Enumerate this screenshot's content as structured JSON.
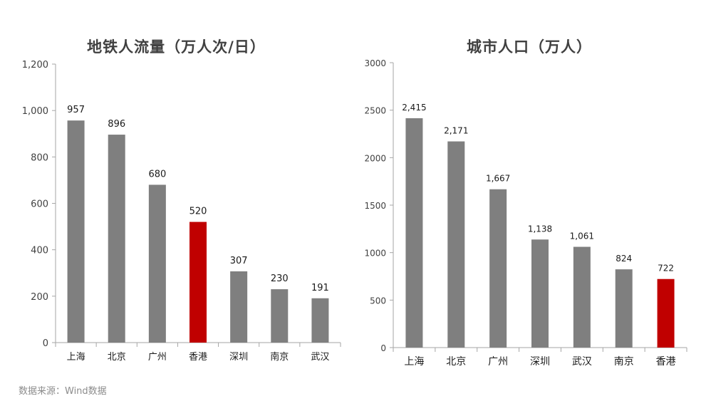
{
  "source": "数据来源：Wind数据",
  "chart_data": [
    {
      "type": "bar",
      "title": "地铁人流量（万人次/日）",
      "xlabel": "",
      "ylabel": "",
      "categories": [
        "上海",
        "北京",
        "广州",
        "香港",
        "深圳",
        "南京",
        "武汉"
      ],
      "values": [
        957,
        896,
        680,
        520,
        307,
        230,
        191
      ],
      "value_labels": [
        "957",
        "896",
        "680",
        "520",
        "307",
        "230",
        "191"
      ],
      "ylim": [
        0,
        1200
      ],
      "yticks": [
        0,
        200,
        400,
        600,
        800,
        1000,
        1200
      ],
      "ytick_labels": [
        "0",
        "200",
        "400",
        "600",
        "800",
        "1,000",
        "1,200"
      ],
      "highlight": "香港",
      "bar_color": "#7f7f7f",
      "highlight_color": "#c00000",
      "grid": false,
      "legend": "none"
    },
    {
      "type": "bar",
      "title": "城市人口（万人）",
      "xlabel": "",
      "ylabel": "",
      "categories": [
        "上海",
        "北京",
        "广州",
        "深圳",
        "武汉",
        "南京",
        "香港"
      ],
      "values": [
        2415,
        2171,
        1667,
        1138,
        1061,
        824,
        722
      ],
      "value_labels": [
        "2,415",
        "2,171",
        "1,667",
        "1,138",
        "1,061",
        "824",
        "722"
      ],
      "ylim": [
        0,
        3000
      ],
      "yticks": [
        0,
        500,
        1000,
        1500,
        2000,
        2500,
        3000
      ],
      "ytick_labels": [
        "0",
        "500",
        "1000",
        "1500",
        "2000",
        "2500",
        "3000"
      ],
      "highlight": "香港",
      "bar_color": "#7f7f7f",
      "highlight_color": "#c00000",
      "grid": false,
      "legend": "none"
    }
  ]
}
